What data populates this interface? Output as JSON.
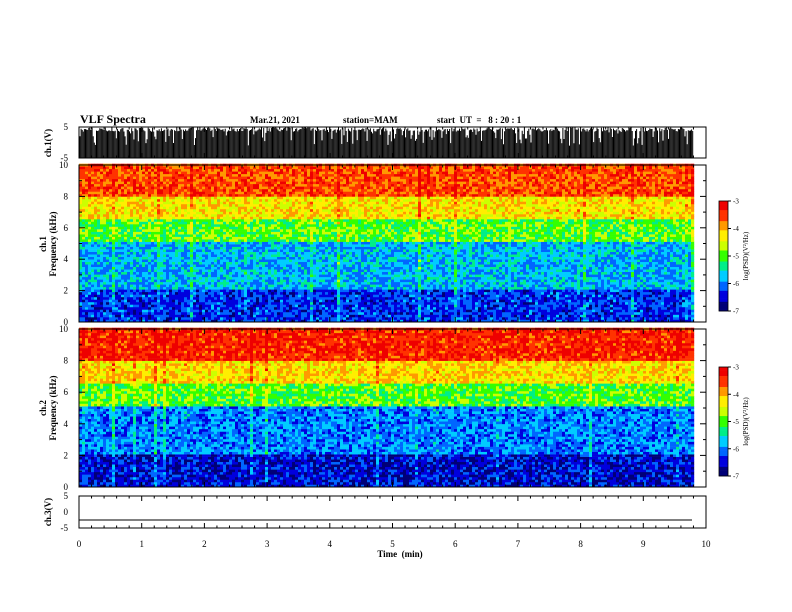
{
  "header": {
    "title": "VLF Spectra",
    "date": "Mar.21, 2021",
    "station": "station=MAM",
    "start": "start  UT  =   8 : 20 : 1"
  },
  "colorbar_label": "log(PSD)(V²/Hz)",
  "colors": {
    "colormap": [
      "#000077",
      "#0000dd",
      "#0066ff",
      "#00ccff",
      "#00ee88",
      "#33ff00",
      "#ccff00",
      "#ffee00",
      "#ff9900",
      "#ff3300",
      "#ee0000"
    ]
  },
  "chart_data": [
    {
      "type": "line",
      "name": "waveform ch1",
      "ylabel": "ch.1(V)",
      "ylim": [
        -5,
        5
      ],
      "yticks": [
        "5",
        "-5"
      ],
      "xlim": [
        0,
        10
      ],
      "description_values": {
        "baseline": -5,
        "typical_burst_max": 5
      }
    },
    {
      "type": "heatmap",
      "ylabel_line1": "ch.1",
      "ylabel_line2": "Frequency  (kHz)",
      "xlim": [
        0,
        10
      ],
      "ylim": [
        0,
        10
      ],
      "yticks": [
        "0",
        "2",
        "4",
        "6",
        "8",
        "10"
      ],
      "data_end_min": 9.8,
      "colorbar": {
        "range": [
          -7,
          -3
        ],
        "ticks": [
          "-3",
          "-4",
          "-5",
          "-6",
          "-7"
        ]
      },
      "band_log_psd": [
        {
          "freq_khz": [
            0,
            2
          ],
          "log_psd": -6.3
        },
        {
          "freq_khz": [
            2,
            5
          ],
          "log_psd": -5.8
        },
        {
          "freq_khz": [
            5,
            6.5
          ],
          "log_psd": -5.0
        },
        {
          "freq_khz": [
            6.5,
            8
          ],
          "log_psd": -4.3
        },
        {
          "freq_khz": [
            8,
            10
          ],
          "log_psd": -3.6
        }
      ]
    },
    {
      "type": "heatmap",
      "ylabel_line1": "ch.2",
      "ylabel_line2": "Frequency  (kHz)",
      "xlim": [
        0,
        10
      ],
      "ylim": [
        0,
        10
      ],
      "yticks": [
        "0",
        "2",
        "4",
        "6",
        "8",
        "10"
      ],
      "data_end_min": 9.8,
      "colorbar": {
        "range": [
          -7,
          -3
        ],
        "ticks": [
          "-3",
          "-4",
          "-5",
          "-6",
          "-7"
        ]
      },
      "band_log_psd": [
        {
          "freq_khz": [
            0,
            2
          ],
          "log_psd": -6.5
        },
        {
          "freq_khz": [
            2,
            5
          ],
          "log_psd": -6.0
        },
        {
          "freq_khz": [
            5,
            6.5
          ],
          "log_psd": -5.0
        },
        {
          "freq_khz": [
            6.5,
            8
          ],
          "log_psd": -4.2
        },
        {
          "freq_khz": [
            8,
            10
          ],
          "log_psd": -3.4
        }
      ]
    },
    {
      "type": "line",
      "name": "waveform ch3",
      "ylabel": "ch.3(V)",
      "ylim": [
        -5,
        5
      ],
      "yticks": [
        "5",
        "0",
        "-5"
      ],
      "xlim": [
        0,
        10
      ],
      "values": {
        "constant": -2.5
      }
    }
  ],
  "xaxis": {
    "label": "Time  (min)",
    "ticks": [
      "0",
      "1",
      "2",
      "3",
      "4",
      "5",
      "6",
      "7",
      "8",
      "9",
      "10"
    ]
  }
}
